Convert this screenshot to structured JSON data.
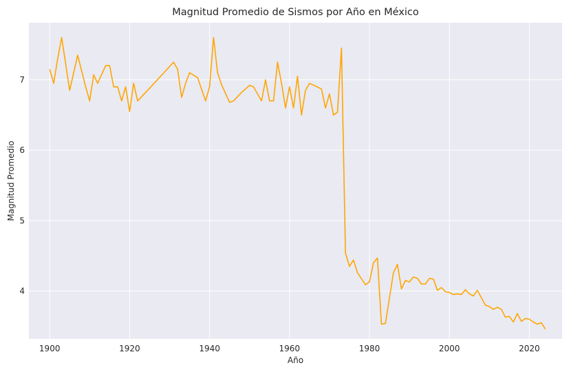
{
  "colors": {
    "plot_background": "#eaeaf2",
    "grid": "#ffffff",
    "line": "#ffa500",
    "text": "#262626"
  },
  "chart_data": {
    "type": "line",
    "title": "Magnitud Promedio de Sismos por Año en México",
    "xlabel": "Año",
    "ylabel": "Magnitud Promedio",
    "xlim": [
      1894.8,
      2028.2
    ],
    "ylim": [
      3.32,
      7.81
    ],
    "xticks": [
      1900,
      1920,
      1940,
      1960,
      1980,
      2000,
      2020
    ],
    "yticks": [
      4,
      5,
      6,
      7
    ],
    "grid": true,
    "legend": "none",
    "series": [
      {
        "color": "#ffa500",
        "x": [
          1900,
          1901,
          1902,
          1903,
          1905,
          1907,
          1909,
          1910,
          1911,
          1912,
          1914,
          1915,
          1916,
          1917,
          1918,
          1919,
          1920,
          1921,
          1922,
          1925,
          1931,
          1932,
          1933,
          1934,
          1935,
          1937,
          1939,
          1940,
          1941,
          1942,
          1943,
          1945,
          1946,
          1948,
          1950,
          1951,
          1953,
          1954,
          1955,
          1956,
          1957,
          1958,
          1959,
          1960,
          1961,
          1962,
          1963,
          1964,
          1965,
          1968,
          1969,
          1970,
          1971,
          1972,
          1973,
          1974,
          1975,
          1976,
          1977,
          1979,
          1980,
          1981,
          1982,
          1983,
          1984,
          1986,
          1987,
          1988,
          1989,
          1990,
          1991,
          1992,
          1993,
          1994,
          1995,
          1996,
          1997,
          1998,
          1999,
          2000,
          2001,
          2002,
          2003,
          2004,
          2005,
          2006,
          2007,
          2009,
          2010,
          2011,
          2012,
          2013,
          2014,
          2015,
          2016,
          2017,
          2018,
          2019,
          2020,
          2021,
          2022,
          2023,
          2024
        ],
        "y": [
          7.15,
          6.95,
          7.3,
          7.6,
          6.85,
          7.35,
          6.9,
          6.7,
          7.07,
          6.95,
          7.2,
          7.2,
          6.9,
          6.9,
          6.7,
          6.9,
          6.55,
          6.95,
          6.7,
          6.88,
          7.25,
          7.15,
          6.75,
          6.95,
          7.1,
          7.03,
          6.7,
          6.9,
          7.6,
          7.1,
          6.93,
          6.68,
          6.7,
          6.82,
          6.92,
          6.9,
          6.7,
          7.0,
          6.7,
          6.7,
          7.25,
          6.95,
          6.6,
          6.9,
          6.6,
          7.05,
          6.5,
          6.85,
          6.95,
          6.87,
          6.6,
          6.8,
          6.5,
          6.54,
          7.45,
          4.54,
          4.35,
          4.44,
          4.26,
          4.09,
          4.13,
          4.4,
          4.47,
          3.53,
          3.54,
          4.26,
          4.38,
          4.03,
          4.15,
          4.13,
          4.2,
          4.18,
          4.1,
          4.1,
          4.18,
          4.17,
          4.01,
          4.05,
          3.99,
          3.98,
          3.95,
          3.96,
          3.95,
          4.02,
          3.96,
          3.93,
          4.01,
          3.8,
          3.78,
          3.74,
          3.77,
          3.74,
          3.63,
          3.64,
          3.56,
          3.68,
          3.57,
          3.61,
          3.6,
          3.56,
          3.53,
          3.55,
          3.46
        ]
      }
    ]
  }
}
